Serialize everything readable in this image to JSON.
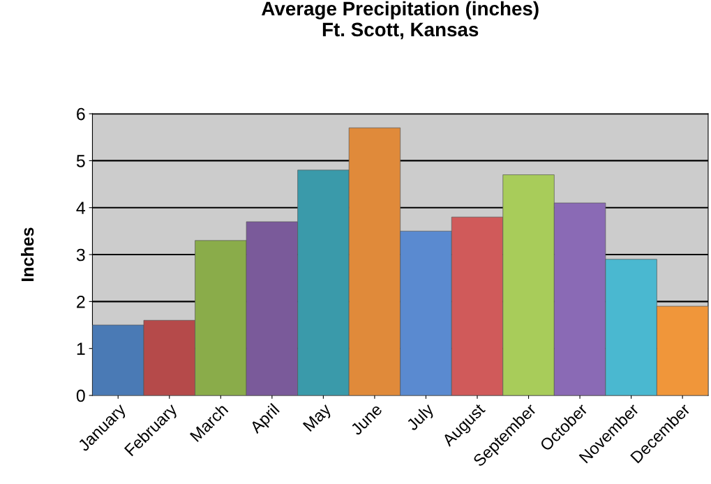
{
  "chart_data": {
    "type": "bar",
    "title": "Average Precipitation (inches)\nFt. Scott, Kansas",
    "ylabel": "Inches",
    "categories": [
      "January",
      "February",
      "March",
      "April",
      "May",
      "June",
      "July",
      "August",
      "September",
      "October",
      "November",
      "December"
    ],
    "values": [
      1.5,
      1.6,
      3.3,
      3.7,
      4.8,
      5.7,
      3.5,
      3.8,
      4.7,
      4.1,
      2.9,
      1.9
    ],
    "colors": [
      "#4a7ab5",
      "#b54a4a",
      "#8aac4a",
      "#7a5a9a",
      "#3a9aaa",
      "#e08a3a",
      "#5a8ad0",
      "#d05a5a",
      "#a8cc5a",
      "#8a6ab5",
      "#4ab8d0",
      "#f0963a"
    ],
    "ylim": [
      0,
      6
    ],
    "yticks": [
      0,
      1,
      2,
      3,
      4,
      5,
      6
    ],
    "grid": "y",
    "legend": false
  }
}
